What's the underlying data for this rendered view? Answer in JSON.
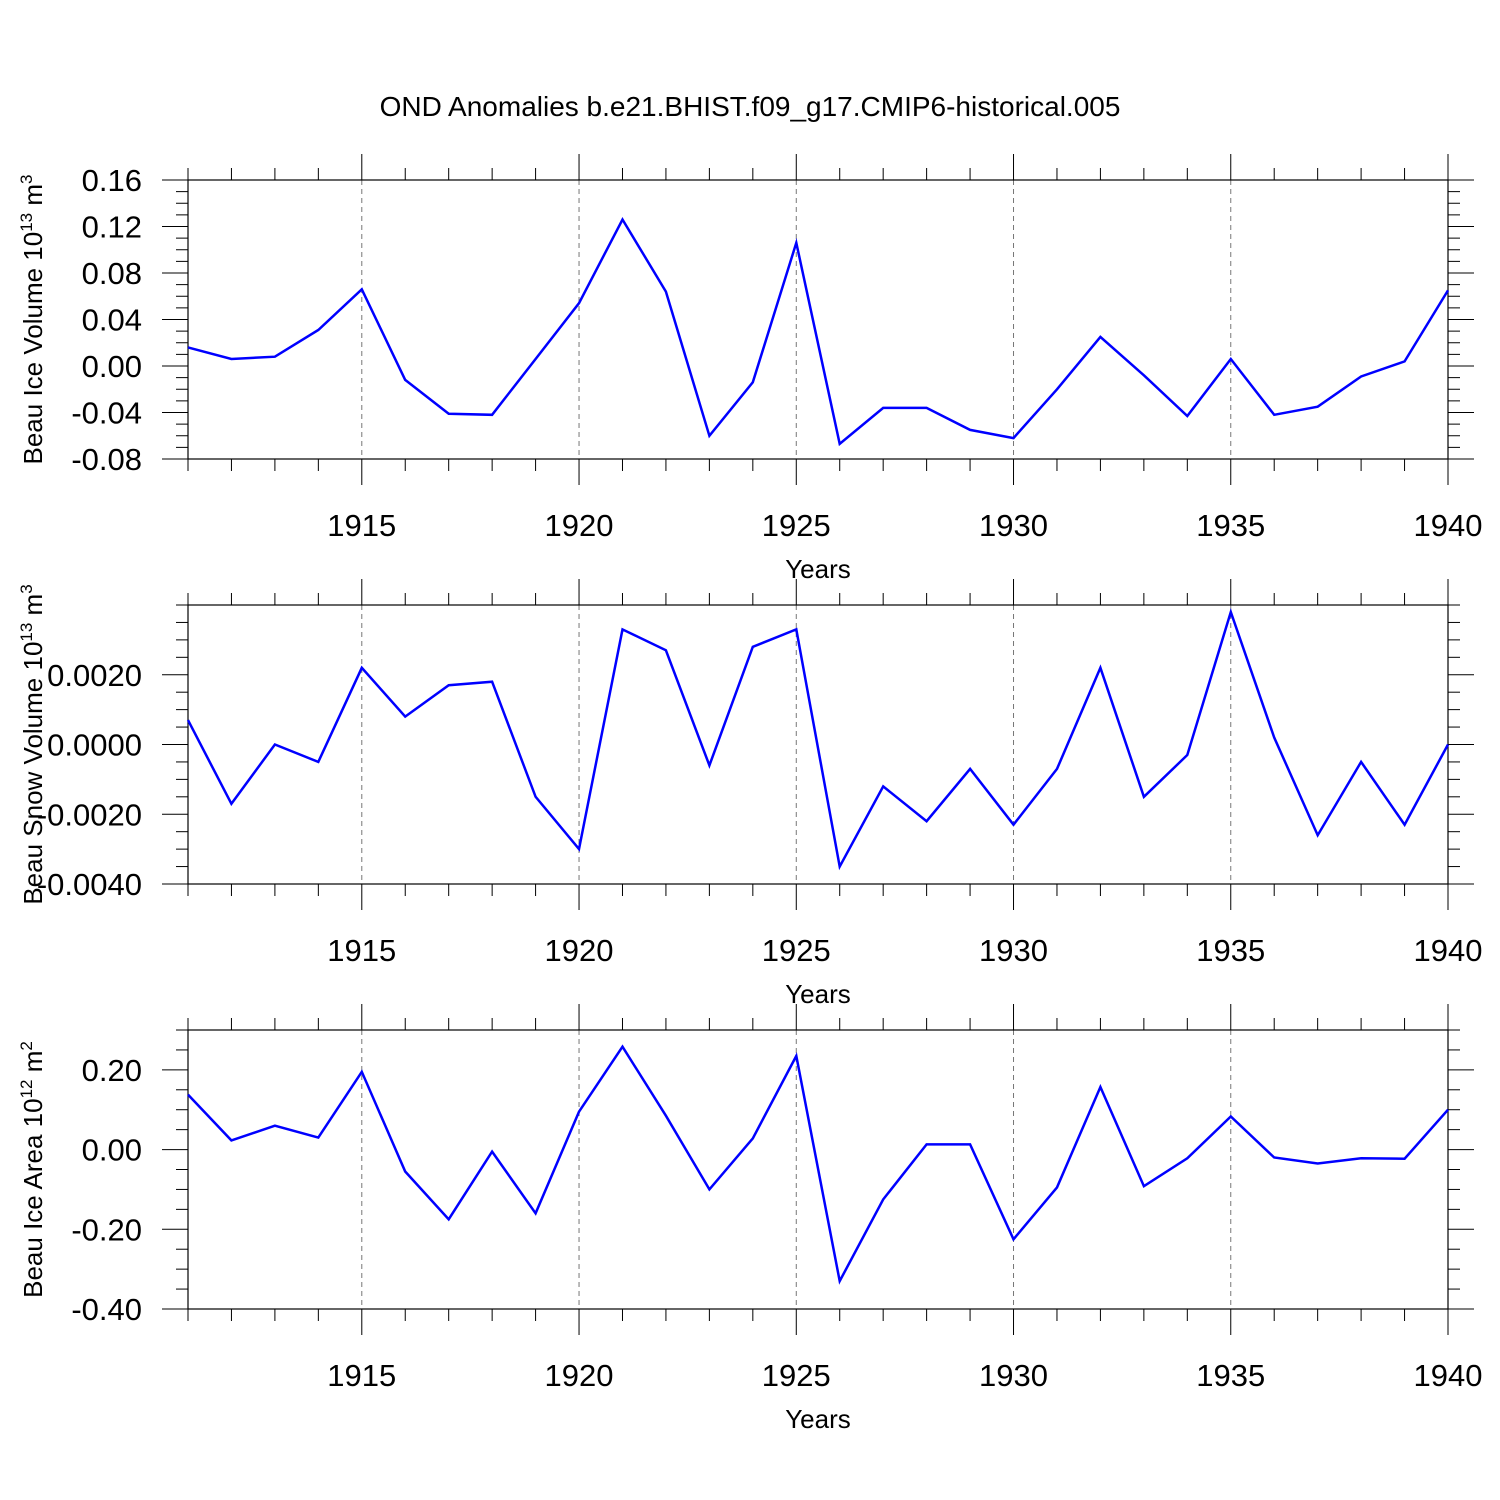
{
  "title": "OND Anomalies b.e21.BHIST.f09_g17.CMIP6-historical.005",
  "colors": {
    "line": "#0000ff",
    "axis": "#000000",
    "grid": "#777777"
  },
  "chart_data": [
    {
      "type": "line",
      "ylabel": "Beau Ice Volume 10",
      "ylabel_sup1": "13",
      "ylabel_mid": " m",
      "ylabel_sup2": "3",
      "xlabel": "Years",
      "xlim": [
        1911,
        1940
      ],
      "ylim": [
        -0.08,
        0.16
      ],
      "yticks": [
        -0.08,
        -0.04,
        0.0,
        0.04,
        0.08,
        0.12,
        0.16
      ],
      "ytick_labels": [
        "-0.08",
        "-0.04",
        "0.00",
        "0.04",
        "0.08",
        "0.12",
        "0.16"
      ],
      "xticks": [
        1915,
        1920,
        1925,
        1930,
        1935,
        1940
      ],
      "xtick_labels": [
        "1915",
        "1920",
        "1925",
        "1930",
        "1935",
        "1940"
      ],
      "grid": "vertical dashed at major x ticks",
      "x": [
        1911,
        1912,
        1913,
        1914,
        1915,
        1916,
        1917,
        1918,
        1919,
        1920,
        1921,
        1922,
        1923,
        1924,
        1925,
        1926,
        1927,
        1928,
        1929,
        1930,
        1931,
        1932,
        1933,
        1934,
        1935,
        1936,
        1937,
        1938,
        1939,
        1940
      ],
      "values": [
        0.016,
        0.006,
        0.008,
        0.031,
        0.066,
        -0.012,
        -0.041,
        -0.042,
        0.006,
        0.054,
        0.126,
        0.064,
        -0.06,
        -0.014,
        0.106,
        -0.067,
        -0.036,
        -0.036,
        -0.055,
        -0.062,
        -0.02,
        0.025,
        -0.008,
        -0.043,
        0.006,
        -0.042,
        -0.035,
        -0.009,
        0.004,
        0.065
      ]
    },
    {
      "type": "line",
      "ylabel": "Beau Snow Volume 10",
      "ylabel_sup1": "13",
      "ylabel_mid": " m",
      "ylabel_sup2": "3",
      "xlabel": "Years",
      "xlim": [
        1911,
        1940
      ],
      "ylim": [
        -0.004,
        0.004
      ],
      "yticks": [
        -0.004,
        -0.002,
        0.0,
        0.002
      ],
      "ytick_labels": [
        "-0.0040",
        "-0.0020",
        "0.0000",
        "0.0020"
      ],
      "xticks": [
        1915,
        1920,
        1925,
        1930,
        1935,
        1940
      ],
      "xtick_labels": [
        "1915",
        "1920",
        "1925",
        "1930",
        "1935",
        "1940"
      ],
      "grid": "vertical dashed at major x ticks",
      "x": [
        1911,
        1912,
        1913,
        1914,
        1915,
        1916,
        1917,
        1918,
        1919,
        1920,
        1921,
        1922,
        1923,
        1924,
        1925,
        1926,
        1927,
        1928,
        1929,
        1930,
        1931,
        1932,
        1933,
        1934,
        1935,
        1936,
        1937,
        1938,
        1939,
        1940
      ],
      "values": [
        0.0007,
        -0.0017,
        0.0,
        -0.0005,
        0.0022,
        0.0008,
        0.0017,
        0.0018,
        -0.0015,
        -0.003,
        0.0033,
        0.0027,
        -0.0006,
        0.0028,
        0.0033,
        -0.0035,
        -0.0012,
        -0.0022,
        -0.0007,
        -0.0023,
        -0.0007,
        0.0022,
        -0.0015,
        -0.0003,
        0.0038,
        0.0002,
        -0.0026,
        -0.0005,
        -0.0023,
        0.0
      ]
    },
    {
      "type": "line",
      "ylabel": "Beau Ice Area 10",
      "ylabel_sup1": "12",
      "ylabel_mid": " m",
      "ylabel_sup2": "2",
      "xlabel": "Years",
      "xlim": [
        1911,
        1940
      ],
      "ylim": [
        -0.4,
        0.3
      ],
      "yticks": [
        -0.4,
        -0.2,
        0.0,
        0.2
      ],
      "ytick_labels": [
        "-0.40",
        "-0.20",
        "0.00",
        "0.20"
      ],
      "xticks": [
        1915,
        1920,
        1925,
        1930,
        1935,
        1940
      ],
      "xtick_labels": [
        "1915",
        "1920",
        "1925",
        "1930",
        "1935",
        "1940"
      ],
      "grid": "vertical dashed at major x ticks",
      "x": [
        1911,
        1912,
        1913,
        1914,
        1915,
        1916,
        1917,
        1918,
        1919,
        1920,
        1921,
        1922,
        1923,
        1924,
        1925,
        1926,
        1927,
        1928,
        1929,
        1930,
        1931,
        1932,
        1933,
        1934,
        1935,
        1936,
        1937,
        1938,
        1939,
        1940
      ],
      "values": [
        0.138,
        0.023,
        0.06,
        0.03,
        0.195,
        -0.055,
        -0.175,
        -0.005,
        -0.16,
        0.095,
        0.258,
        0.085,
        -0.1,
        0.028,
        0.235,
        -0.33,
        -0.125,
        0.013,
        0.013,
        -0.225,
        -0.095,
        0.157,
        -0.092,
        -0.022,
        0.083,
        -0.02,
        -0.035,
        -0.022,
        -0.023,
        0.1
      ]
    }
  ]
}
